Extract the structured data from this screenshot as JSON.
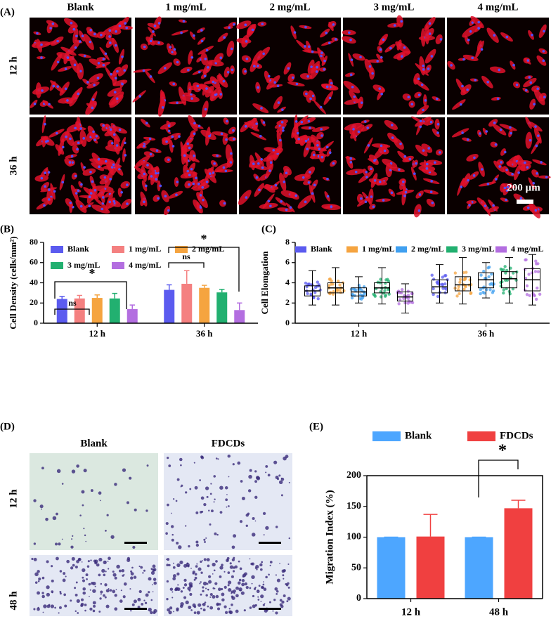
{
  "panels": {
    "a": {
      "label": "(A)",
      "columns": [
        "Blank",
        "1 mg/mL",
        "2 mg/mL",
        "3 mg/mL",
        "4 mg/mL"
      ],
      "rows": [
        "12 h",
        "36 h"
      ],
      "scale_bar": "200 µm"
    },
    "d": {
      "label": "(D)",
      "columns": [
        "Blank",
        "FDCDs"
      ],
      "rows": [
        "12 h",
        "48 h"
      ]
    }
  },
  "chart_data": [
    {
      "label": "(B)",
      "type": "bar",
      "y_label": "Cell Density (cells/mm²)",
      "categories": [
        "12 h",
        "36 h"
      ],
      "series": [
        {
          "name": "Blank",
          "color": "#5b5bef",
          "values": [
            24,
            33
          ],
          "errors": [
            2.5,
            5
          ]
        },
        {
          "name": "1 mg/mL",
          "color": "#f48080",
          "values": [
            24.5,
            39
          ],
          "errors": [
            3,
            13
          ]
        },
        {
          "name": "2 mg/mL",
          "color": "#f5a440",
          "values": [
            25,
            35
          ],
          "errors": [
            3,
            2.5
          ]
        },
        {
          "name": "3 mg/mL",
          "color": "#22b070",
          "values": [
            24.5,
            30.5
          ],
          "errors": [
            5,
            3
          ]
        },
        {
          "name": "4 mg/mL",
          "color": "#b36ee0",
          "values": [
            14,
            13
          ],
          "errors": [
            4,
            7
          ]
        }
      ],
      "ylim": [
        0,
        80
      ],
      "yticks": [
        0,
        20,
        40,
        60,
        80
      ],
      "annotations": [
        "ns",
        "*",
        "ns",
        "*"
      ]
    },
    {
      "label": "(C)",
      "type": "box",
      "y_label": "Cell Elomgation",
      "categories": [
        "12 h",
        "36 h"
      ],
      "series": [
        {
          "name": "Blank",
          "color": "#5b5bef",
          "values": [
            {
              "min": 1.8,
              "q1": 2.7,
              "median": 3.2,
              "q3": 3.7,
              "max": 5.2
            },
            {
              "min": 2.0,
              "q1": 3.0,
              "median": 3.6,
              "q3": 4.3,
              "max": 5.8
            }
          ]
        },
        {
          "name": "1 mg/mL",
          "color": "#f5a440",
          "values": [
            {
              "min": 1.8,
              "q1": 3.0,
              "median": 3.5,
              "q3": 4.0,
              "max": 5.5
            },
            {
              "min": 1.9,
              "q1": 3.2,
              "median": 3.8,
              "q3": 4.6,
              "max": 6.5
            }
          ]
        },
        {
          "name": "2 mg/mL",
          "color": "#40a0f0",
          "values": [
            {
              "min": 2.0,
              "q1": 2.7,
              "median": 3.1,
              "q3": 3.5,
              "max": 4.6
            },
            {
              "min": 2.5,
              "q1": 3.5,
              "median": 4.3,
              "q3": 5.0,
              "max": 6.0
            }
          ]
        },
        {
          "name": "3 mg/mL",
          "color": "#22b070",
          "values": [
            {
              "min": 1.9,
              "q1": 3.0,
              "median": 3.5,
              "q3": 4.0,
              "max": 5.5
            },
            {
              "min": 2.0,
              "q1": 3.5,
              "median": 4.4,
              "q3": 5.1,
              "max": 6.5
            }
          ]
        },
        {
          "name": "4 mg/mL",
          "color": "#b36ee0",
          "values": [
            {
              "min": 1.0,
              "q1": 2.2,
              "median": 2.6,
              "q3": 3.1,
              "max": 3.9
            },
            {
              "min": 1.8,
              "q1": 3.2,
              "median": 4.3,
              "q3": 5.4,
              "max": 6.8
            }
          ]
        }
      ],
      "ylim": [
        0,
        8
      ],
      "yticks": [
        0,
        2,
        4,
        6,
        8
      ]
    },
    {
      "label": "(E)",
      "type": "bar",
      "y_label": "Migration Index (%)",
      "categories": [
        "12 h",
        "48 h"
      ],
      "series": [
        {
          "name": "Blank",
          "color": "#4da6ff",
          "values": [
            100,
            100
          ],
          "errors": [
            0,
            0
          ]
        },
        {
          "name": "FDCDs",
          "color": "#f04040",
          "values": [
            101,
            147
          ],
          "errors": [
            36,
            13
          ]
        }
      ],
      "ylim": [
        0,
        200
      ],
      "yticks": [
        0,
        50,
        100,
        150,
        200
      ],
      "annotations": [
        "*"
      ]
    }
  ]
}
